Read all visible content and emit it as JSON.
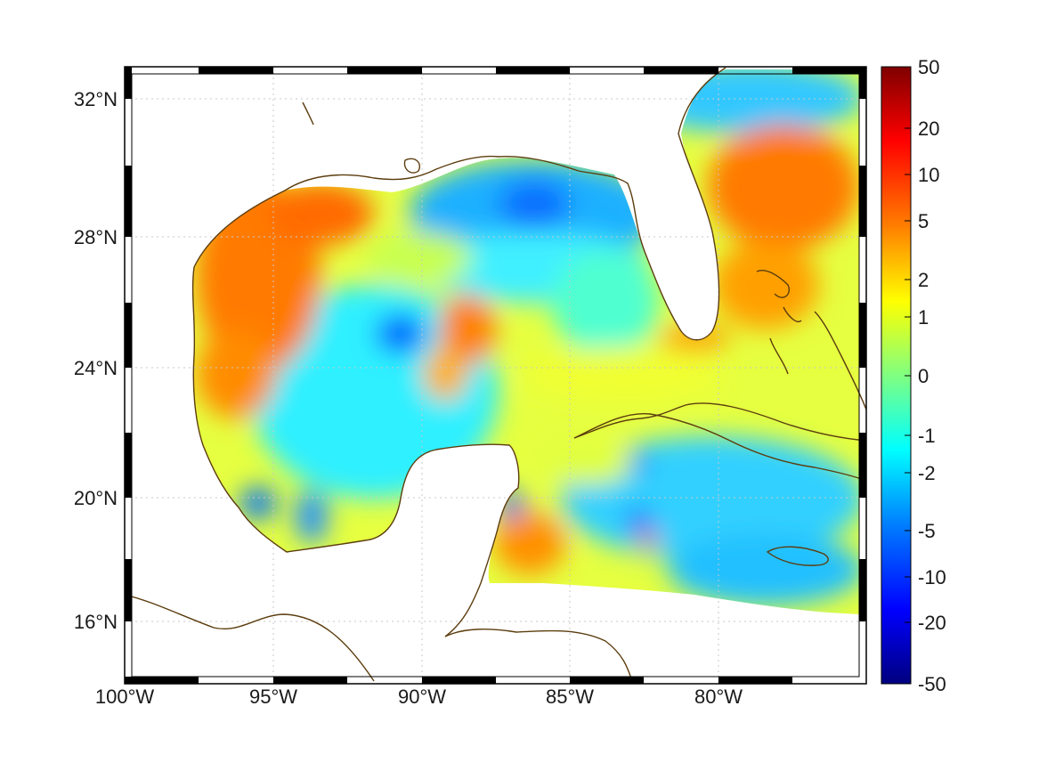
{
  "map": {
    "lon_range": [
      -100,
      -75
    ],
    "lat_range": [
      14.25,
      33
    ],
    "lon_ticks": [
      {
        "value": -100,
        "label": "100°W"
      },
      {
        "value": -95,
        "label": "95°W"
      },
      {
        "value": -90,
        "label": "90°W"
      },
      {
        "value": -85,
        "label": "85°W"
      },
      {
        "value": -80,
        "label": "80°W"
      }
    ],
    "lat_ticks": [
      {
        "value": 32,
        "label": "32°N"
      },
      {
        "value": 28,
        "label": "28°N"
      },
      {
        "value": 24,
        "label": "24°N"
      },
      {
        "value": 20,
        "label": "20°N"
      },
      {
        "value": 16,
        "label": "16°N"
      }
    ],
    "grid": true,
    "coastline_color": "#5c3d0e",
    "land_color": "#ffffff"
  },
  "colorbar": {
    "colormap": "jet",
    "position": "right",
    "ticks": [
      {
        "value": 50,
        "label": "50"
      },
      {
        "value": 20,
        "label": "20"
      },
      {
        "value": 10,
        "label": "10"
      },
      {
        "value": 5,
        "label": "5"
      },
      {
        "value": 2,
        "label": "2"
      },
      {
        "value": 1,
        "label": "1"
      },
      {
        "value": 0,
        "label": "0"
      },
      {
        "value": -1,
        "label": "-1"
      },
      {
        "value": -2,
        "label": "-2"
      },
      {
        "value": -5,
        "label": "-5"
      },
      {
        "value": -10,
        "label": "-10"
      },
      {
        "value": -20,
        "label": "-20"
      },
      {
        "value": -50,
        "label": "-50"
      }
    ]
  }
}
